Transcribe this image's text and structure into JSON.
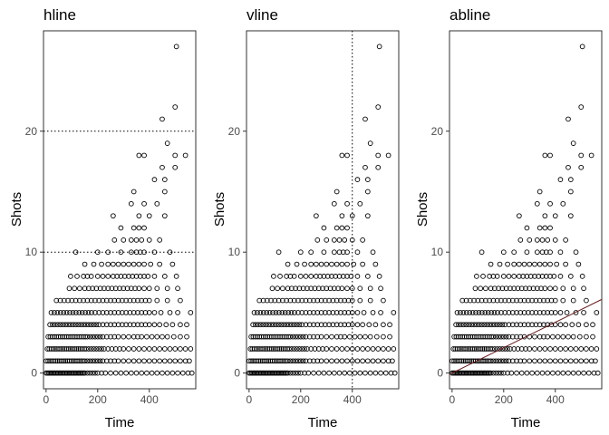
{
  "chart_data": [
    {
      "type": "scatter",
      "title": "hline",
      "xlabel": "Time",
      "ylabel": "Shots",
      "xlim": [
        -10,
        580
      ],
      "ylim": [
        -1.3,
        28.3
      ],
      "xticks": [
        0,
        200,
        400
      ],
      "yticks": [
        0,
        10,
        20
      ],
      "grid": false,
      "reference_line": {
        "kind": "hline",
        "y": [
          10,
          20
        ],
        "style": "dotted"
      }
    },
    {
      "type": "scatter",
      "title": "vline",
      "xlabel": "Time",
      "ylabel": "Shots",
      "xlim": [
        -10,
        580
      ],
      "ylim": [
        -1.3,
        28.3
      ],
      "xticks": [
        0,
        200,
        400
      ],
      "yticks": [
        0,
        10,
        20
      ],
      "grid": false,
      "reference_line": {
        "kind": "vline",
        "x": [
          400
        ],
        "style": "dotted"
      }
    },
    {
      "type": "scatter",
      "title": "abline",
      "xlabel": "Time",
      "ylabel": "Shots",
      "xlim": [
        -10,
        580
      ],
      "ylim": [
        -1.3,
        28.3
      ],
      "xticks": [
        0,
        200,
        400
      ],
      "yticks": [
        0,
        10,
        20
      ],
      "grid": false,
      "reference_line": {
        "kind": "abline",
        "intercept": 0,
        "slope": 0.0105,
        "color": "#6b1d1d"
      }
    }
  ],
  "points": {
    "x": [
      0,
      5,
      10,
      15,
      20,
      25,
      30,
      35,
      40,
      45,
      50,
      55,
      60,
      65,
      70,
      75,
      80,
      85,
      90,
      95,
      100,
      105,
      110,
      115,
      120,
      125,
      130,
      135,
      140,
      145,
      150,
      160,
      170,
      180,
      190,
      200,
      215,
      230,
      250,
      270,
      290,
      310,
      330,
      350,
      370,
      390,
      410,
      430,
      450,
      470,
      490,
      510,
      530,
      550,
      565,
      0,
      8,
      15,
      22,
      30,
      38,
      45,
      52,
      60,
      68,
      75,
      82,
      90,
      98,
      105,
      112,
      120,
      128,
      135,
      142,
      150,
      160,
      170,
      180,
      190,
      200,
      210,
      220,
      235,
      250,
      265,
      280,
      300,
      320,
      340,
      360,
      380,
      400,
      420,
      440,
      460,
      480,
      500,
      520,
      540,
      555,
      5,
      12,
      20,
      28,
      35,
      42,
      50,
      58,
      65,
      72,
      80,
      88,
      95,
      102,
      110,
      118,
      125,
      132,
      140,
      148,
      155,
      165,
      175,
      185,
      195,
      205,
      215,
      225,
      240,
      255,
      270,
      285,
      300,
      320,
      340,
      360,
      380,
      400,
      420,
      440,
      460,
      480,
      500,
      520,
      540,
      560,
      8,
      16,
      24,
      32,
      40,
      48,
      56,
      64,
      72,
      80,
      88,
      96,
      104,
      112,
      120,
      128,
      136,
      144,
      152,
      160,
      170,
      180,
      190,
      200,
      210,
      220,
      235,
      250,
      265,
      280,
      300,
      320,
      340,
      355,
      370,
      390,
      410,
      430,
      450,
      470,
      495,
      520,
      545,
      15,
      25,
      35,
      45,
      55,
      65,
      75,
      85,
      95,
      105,
      115,
      125,
      135,
      145,
      155,
      165,
      175,
      185,
      195,
      205,
      220,
      235,
      250,
      265,
      280,
      295,
      310,
      325,
      340,
      355,
      370,
      385,
      400,
      420,
      440,
      465,
      490,
      520,
      545,
      20,
      32,
      44,
      56,
      68,
      80,
      92,
      104,
      116,
      128,
      140,
      152,
      164,
      176,
      190,
      205,
      220,
      235,
      250,
      265,
      280,
      295,
      310,
      325,
      340,
      355,
      370,
      385,
      400,
      420,
      445,
      480,
      510,
      560,
      40,
      55,
      70,
      85,
      100,
      115,
      130,
      145,
      160,
      175,
      190,
      205,
      220,
      235,
      250,
      265,
      280,
      295,
      310,
      325,
      340,
      355,
      370,
      385,
      400,
      430,
      470,
      520,
      90,
      110,
      130,
      150,
      165,
      180,
      195,
      210,
      225,
      240,
      255,
      270,
      285,
      300,
      315,
      330,
      345,
      360,
      380,
      400,
      430,
      470,
      510,
      95,
      120,
      145,
      160,
      175,
      200,
      220,
      240,
      260,
      275,
      290,
      305,
      320,
      335,
      350,
      365,
      380,
      395,
      420,
      460,
      505,
      150,
      185,
      215,
      240,
      260,
      280,
      300,
      320,
      340,
      360,
      380,
      405,
      440,
      490,
      115,
      200,
      240,
      290,
      330,
      350,
      365,
      380,
      420,
      480,
      265,
      300,
      330,
      350,
      370,
      400,
      440,
      290,
      340,
      360,
      380,
      260,
      360,
      400,
      460,
      330,
      380,
      430,
      340,
      420,
      460,
      450,
      500,
      380,
      500,
      360,
      470,
      450,
      540,
      460,
      500,
      505
    ],
    "y": [
      0,
      0,
      0,
      0,
      0,
      0,
      0,
      0,
      0,
      0,
      0,
      0,
      0,
      0,
      0,
      0,
      0,
      0,
      0,
      0,
      0,
      0,
      0,
      0,
      0,
      0,
      0,
      0,
      0,
      0,
      0,
      0,
      0,
      0,
      0,
      0,
      0,
      0,
      0,
      0,
      0,
      0,
      0,
      0,
      0,
      0,
      0,
      0,
      0,
      0,
      0,
      0,
      0,
      0,
      0,
      1,
      1,
      1,
      1,
      1,
      1,
      1,
      1,
      1,
      1,
      1,
      1,
      1,
      1,
      1,
      1,
      1,
      1,
      1,
      1,
      1,
      1,
      1,
      1,
      1,
      1,
      1,
      1,
      1,
      1,
      1,
      1,
      1,
      1,
      1,
      1,
      1,
      1,
      1,
      1,
      1,
      1,
      1,
      1,
      1,
      1,
      2,
      2,
      2,
      2,
      2,
      2,
      2,
      2,
      2,
      2,
      2,
      2,
      2,
      2,
      2,
      2,
      2,
      2,
      2,
      2,
      2,
      2,
      2,
      2,
      2,
      2,
      2,
      2,
      2,
      2,
      2,
      2,
      2,
      2,
      2,
      2,
      2,
      2,
      2,
      2,
      2,
      2,
      2,
      2,
      2,
      2,
      3,
      3,
      3,
      3,
      3,
      3,
      3,
      3,
      3,
      3,
      3,
      3,
      3,
      3,
      3,
      3,
      3,
      3,
      3,
      3,
      3,
      3,
      3,
      3,
      3,
      3,
      3,
      3,
      3,
      3,
      3,
      3,
      3,
      3,
      3,
      3,
      3,
      3,
      3,
      3,
      3,
      3,
      3,
      4,
      4,
      4,
      4,
      4,
      4,
      4,
      4,
      4,
      4,
      4,
      4,
      4,
      4,
      4,
      4,
      4,
      4,
      4,
      4,
      4,
      4,
      4,
      4,
      4,
      4,
      4,
      4,
      4,
      4,
      4,
      4,
      4,
      4,
      4,
      4,
      4,
      4,
      4,
      5,
      5,
      5,
      5,
      5,
      5,
      5,
      5,
      5,
      5,
      5,
      5,
      5,
      5,
      5,
      5,
      5,
      5,
      5,
      5,
      5,
      5,
      5,
      5,
      5,
      5,
      5,
      5,
      5,
      5,
      5,
      5,
      5,
      5,
      6,
      6,
      6,
      6,
      6,
      6,
      6,
      6,
      6,
      6,
      6,
      6,
      6,
      6,
      6,
      6,
      6,
      6,
      6,
      6,
      6,
      6,
      6,
      6,
      6,
      6,
      6,
      6,
      7,
      7,
      7,
      7,
      7,
      7,
      7,
      7,
      7,
      7,
      7,
      7,
      7,
      7,
      7,
      7,
      7,
      7,
      7,
      7,
      7,
      7,
      7,
      8,
      8,
      8,
      8,
      8,
      8,
      8,
      8,
      8,
      8,
      8,
      8,
      8,
      8,
      8,
      8,
      8,
      8,
      8,
      8,
      8,
      9,
      9,
      9,
      9,
      9,
      9,
      9,
      9,
      9,
      9,
      9,
      9,
      9,
      9,
      10,
      10,
      10,
      10,
      10,
      10,
      10,
      10,
      10,
      10,
      11,
      11,
      11,
      11,
      11,
      11,
      11,
      12,
      12,
      12,
      12,
      13,
      13,
      13,
      13,
      14,
      14,
      14,
      15,
      16,
      16,
      17,
      17,
      18,
      18,
      18,
      19,
      21,
      18,
      15,
      22,
      27
    ]
  }
}
